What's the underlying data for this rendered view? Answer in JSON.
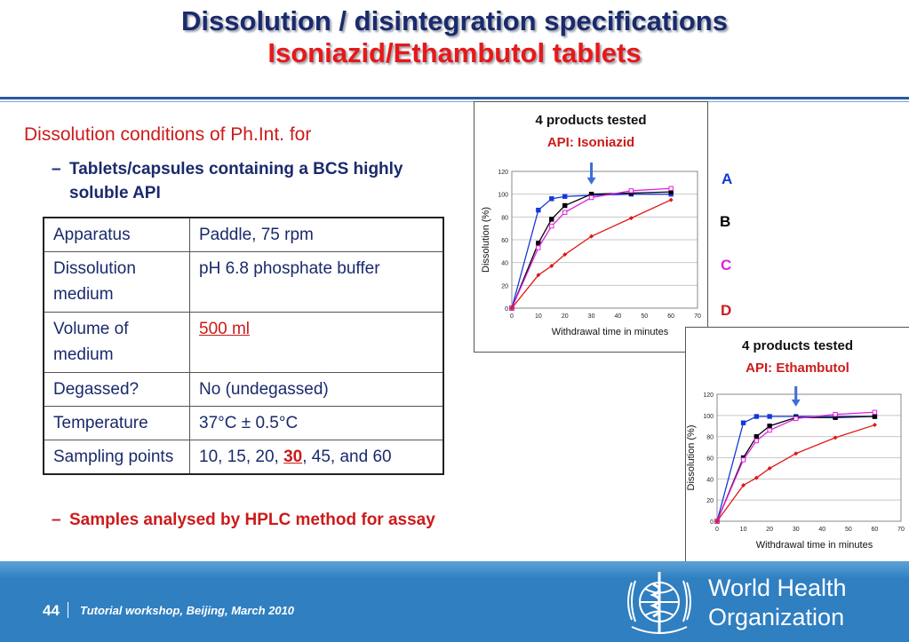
{
  "title": {
    "line1": "Dissolution / disintegration specifications",
    "line2": "Isoniazid/Ethambutol  tablets"
  },
  "conditions_heading": "Dissolution conditions of Ph.Int. for",
  "bullets": [
    "Tablets/capsules containing a BCS highly soluble API",
    "Samples analysed by HPLC method for assay"
  ],
  "table": {
    "apparatus": {
      "label": "Apparatus",
      "value": "Paddle,  75 rpm"
    },
    "medium": {
      "label": "Dissolution medium",
      "value": "pH 6.8 phosphate buffer"
    },
    "volume": {
      "label": "Volume of medium",
      "value": "500 ml"
    },
    "degassed": {
      "label": "Degassed?",
      "value": "No (undegassed)"
    },
    "temperature": {
      "label": "Temperature",
      "value": "37°C ± 0.5°C"
    },
    "sampling": {
      "label": "Sampling points",
      "pre": "10, 15, 20, ",
      "highlight": "30",
      "post": ", 45, and 60"
    }
  },
  "product_labels": [
    "A",
    "B",
    "C",
    "D"
  ],
  "colors": {
    "title_dark": "#1a2a6c",
    "title_red": "#e81818",
    "accent_red": "#cc1b1b",
    "footer_blue": "#2f7fc1",
    "series_A": "#1638d8",
    "series_B": "#000000",
    "series_C": "#e020e0",
    "series_D": "#e01818",
    "arrow": "#3b6fd8"
  },
  "footer": {
    "page_number": "44",
    "text": "Tutorial workshop, Beijing, March 2010",
    "org": [
      "World Health",
      "Organization"
    ]
  },
  "chart_data": [
    {
      "type": "line",
      "title": "4 products tested",
      "subtitle": "API: Isoniazid",
      "xlabel": "Withdrawal time in minutes",
      "ylabel": "Dissolution (%)",
      "xlim": [
        0,
        70
      ],
      "ylim": [
        0,
        120
      ],
      "xticks": [
        0,
        10,
        20,
        30,
        40,
        50,
        60,
        70
      ],
      "yticks": [
        0,
        20,
        40,
        60,
        80,
        100,
        120
      ],
      "series": [
        {
          "name": "A",
          "x": [
            0,
            10,
            15,
            20,
            30,
            45,
            60
          ],
          "values": [
            0,
            86,
            96,
            98,
            99,
            100,
            100
          ]
        },
        {
          "name": "B",
          "x": [
            0,
            10,
            15,
            20,
            30,
            45,
            60
          ],
          "values": [
            0,
            57,
            78,
            90,
            100,
            101,
            102
          ]
        },
        {
          "name": "C",
          "x": [
            0,
            10,
            15,
            20,
            30,
            45,
            60
          ],
          "values": [
            0,
            53,
            72,
            84,
            97,
            103,
            105
          ]
        },
        {
          "name": "D",
          "x": [
            0,
            10,
            15,
            20,
            30,
            45,
            60
          ],
          "values": [
            0,
            29,
            37,
            47,
            63,
            79,
            95
          ]
        }
      ]
    },
    {
      "type": "line",
      "title": "4 products tested",
      "subtitle": "API: Ethambutol",
      "xlabel": "Withdrawal time in minutes",
      "ylabel": "Dissolution (%)",
      "xlim": [
        0,
        70
      ],
      "ylim": [
        0,
        120
      ],
      "xticks": [
        0,
        10,
        20,
        30,
        40,
        50,
        60,
        70
      ],
      "yticks": [
        0,
        20,
        40,
        60,
        80,
        100,
        120
      ],
      "series": [
        {
          "name": "A",
          "x": [
            0,
            10,
            15,
            20,
            30,
            45,
            60
          ],
          "values": [
            0,
            93,
            99,
            99,
            99,
            99,
            99
          ]
        },
        {
          "name": "B",
          "x": [
            0,
            10,
            15,
            20,
            30,
            45,
            60
          ],
          "values": [
            0,
            60,
            80,
            90,
            98,
            98,
            99
          ]
        },
        {
          "name": "C",
          "x": [
            0,
            10,
            15,
            20,
            30,
            45,
            60
          ],
          "values": [
            0,
            58,
            76,
            86,
            97,
            101,
            103
          ]
        },
        {
          "name": "D",
          "x": [
            0,
            10,
            15,
            20,
            30,
            45,
            60
          ],
          "values": [
            0,
            34,
            41,
            50,
            64,
            79,
            91
          ]
        }
      ]
    }
  ]
}
